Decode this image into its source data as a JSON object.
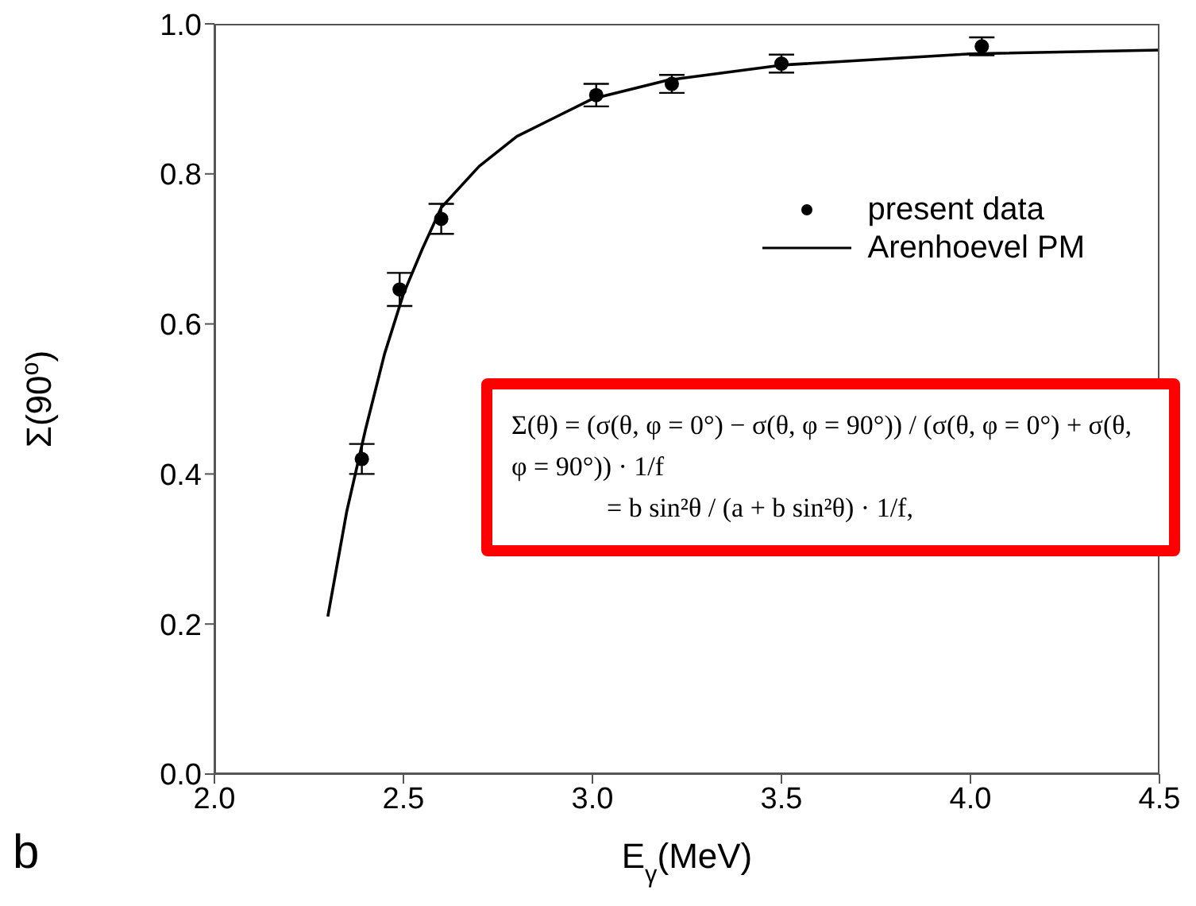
{
  "chart_data": {
    "type": "scatter",
    "xlabel": "E$_{γ}$(MeV)",
    "ylabel": "Σ(90$^{o}$)",
    "xlim": [
      2.0,
      4.5
    ],
    "xticks": [
      {
        "value": 2,
        "label": "2.0"
      },
      2.5,
      {
        "value": 3,
        "label": "3.0"
      },
      3.5,
      {
        "value": 4,
        "label": "4.0"
      },
      4.5
    ],
    "ylim": [
      0.0,
      1.0
    ],
    "yticks": [
      {
        "value": 0,
        "label": "0.0"
      },
      0.2,
      0.4,
      0.6,
      0.8,
      {
        "value": 1,
        "label": "1.0"
      }
    ],
    "series": [
      {
        "name": "present data",
        "color": "#000000",
        "marker": "circle",
        "x": [
          2.39,
          2.49,
          2.6,
          3.01,
          3.21,
          3.5,
          4.03
        ],
        "values": [
          0.42,
          0.646,
          0.74,
          0.905,
          0.92,
          0.947,
          0.97
        ],
        "errors": [
          0.02,
          0.022,
          0.02,
          0.015,
          0.012,
          0.012,
          0.012
        ]
      },
      {
        "name": "Arenhoevel PM",
        "type": "line",
        "color": "#000000",
        "marker": "none",
        "line_style": "solid",
        "x": [
          2.3,
          2.35,
          2.4,
          2.45,
          2.5,
          2.55,
          2.6,
          2.7,
          2.8,
          2.9,
          3.0,
          3.2,
          3.5,
          4.0,
          4.5
        ],
        "values": [
          0.21,
          0.35,
          0.46,
          0.56,
          0.64,
          0.7,
          0.755,
          0.81,
          0.85,
          0.875,
          0.9,
          0.925,
          0.945,
          0.96,
          0.965
        ]
      }
    ],
    "legend": "top right",
    "grid": false,
    "annotations": [
      "Σ(θ) = (σ(θ, φ = 0°) − σ(θ, φ = 90°)) / (σ(θ, φ = 0°) + σ(θ, φ = 90°)) · 1/f",
      "= b sin²θ / (a + b sin²θ) · 1/f,",
      "b"
    ]
  }
}
